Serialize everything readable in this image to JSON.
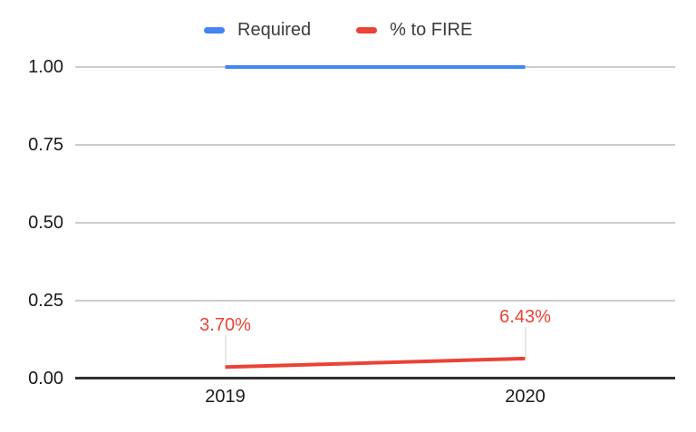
{
  "chart": {
    "background": "#ffffff",
    "legend": {
      "items": [
        {
          "label": "Required",
          "color": "#4285F4"
        },
        {
          "label": "% to FIRE",
          "color": "#EA4335"
        }
      ]
    },
    "colors": {
      "gridline": "#cccccc",
      "axis_line": "#333333",
      "tick_text": "#1a1a1a",
      "legend_text": "#3c3c3c",
      "blue_series": "#4285F4",
      "red_series": "#EA4335"
    }
  },
  "chart_data": {
    "type": "line",
    "title": "",
    "xlabel": "",
    "ylabel": "",
    "categories": [
      "2019",
      "2020"
    ],
    "series": [
      {
        "name": "Required",
        "color": "#4285F4",
        "values": [
          1.0,
          1.0
        ],
        "data_labels": []
      },
      {
        "name": "% to FIRE",
        "color": "#EA4335",
        "values": [
          0.037,
          0.0643
        ],
        "data_labels": [
          "3.70%",
          "6.43%"
        ]
      }
    ],
    "y_ticks": [
      {
        "label": "1.00",
        "value": 1.0
      },
      {
        "label": "0.75",
        "value": 0.75
      },
      {
        "label": "0.50",
        "value": 0.5
      },
      {
        "label": "0.25",
        "value": 0.25
      },
      {
        "label": "0.00",
        "value": 0.0
      }
    ],
    "ylim": [
      0,
      1.0
    ],
    "grid": true,
    "legend_position": "top-center"
  }
}
